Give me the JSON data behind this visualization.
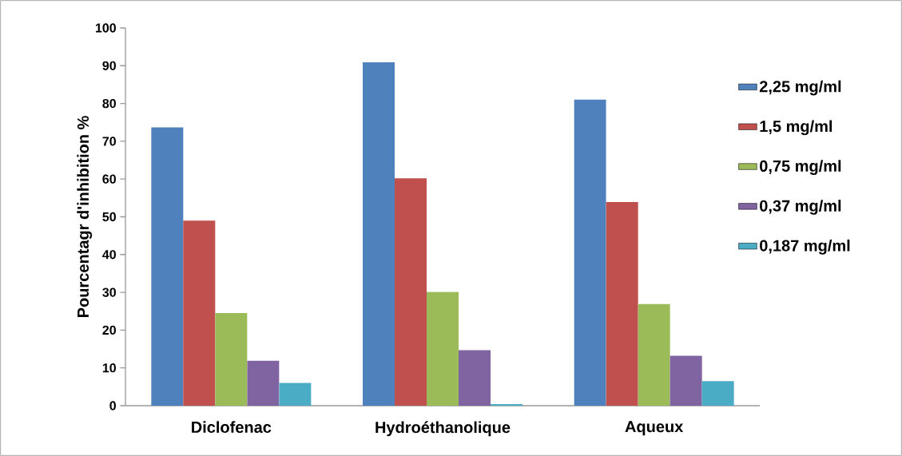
{
  "chart_data": {
    "type": "bar",
    "ylabel": "Pourcentagr d'inhibition %",
    "categories": [
      "Diclofenac",
      "Hydroéthanolique",
      "Aqueux"
    ],
    "series": [
      {
        "name": "2,25 mg/ml",
        "color": "#4f81bd",
        "values": [
          73.7,
          90.9,
          81.0
        ]
      },
      {
        "name": "1,5 mg/ml",
        "color": "#c0504d",
        "values": [
          49.0,
          60.2,
          53.9
        ]
      },
      {
        "name": "0,75 mg/ml",
        "color": "#9bbb59",
        "values": [
          24.5,
          30.1,
          26.9
        ]
      },
      {
        "name": "0,37 mg/ml",
        "color": "#8064a2",
        "values": [
          11.9,
          14.7,
          13.2
        ]
      },
      {
        "name": "0,187 mg/ml",
        "color": "#4bacc6",
        "values": [
          6.0,
          0.4,
          6.5
        ]
      }
    ],
    "ylim": [
      0,
      100
    ],
    "yticks": [
      0,
      10,
      20,
      30,
      40,
      50,
      60,
      70,
      80,
      90,
      100
    ],
    "legend": "right"
  }
}
